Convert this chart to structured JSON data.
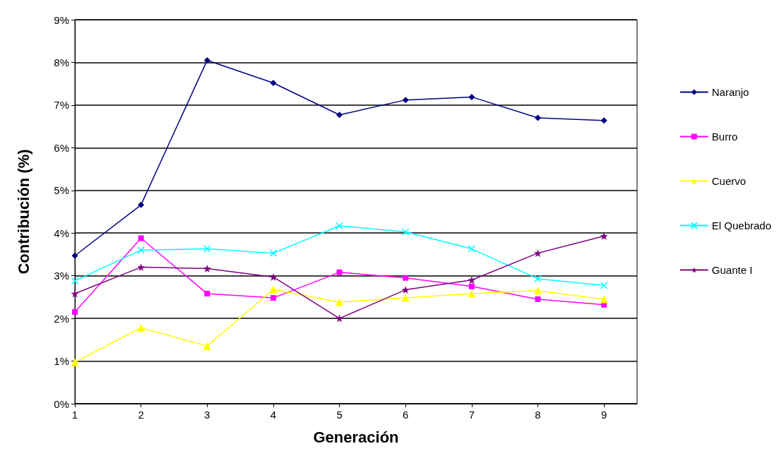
{
  "chart_data": {
    "type": "line",
    "xlabel": "Generación",
    "ylabel": "Contribución (%)",
    "x": [
      1,
      2,
      3,
      4,
      5,
      6,
      7,
      8,
      9
    ],
    "xlim": [
      1,
      9.5
    ],
    "xticks": [
      1,
      2,
      3,
      4,
      5,
      6,
      7,
      8,
      9
    ],
    "ylim": [
      0,
      9
    ],
    "yticks": [
      {
        "value": 0,
        "label": "0%"
      },
      {
        "value": 1,
        "label": "1%"
      },
      {
        "value": 2,
        "label": "2%"
      },
      {
        "value": 3,
        "label": "3%"
      },
      {
        "value": 4,
        "label": "4%"
      },
      {
        "value": 5,
        "label": "5%"
      },
      {
        "value": 6,
        "label": "6%"
      },
      {
        "value": 7,
        "label": "7%"
      },
      {
        "value": 8,
        "label": "8%"
      },
      {
        "value": 9,
        "label": "9%"
      }
    ],
    "grid": "y",
    "legend": "right",
    "series": [
      {
        "name": "Naranjo",
        "color": "#000080",
        "marker": "diamond",
        "values": [
          3.47,
          4.66,
          8.05,
          7.52,
          6.77,
          7.12,
          7.19,
          6.7,
          6.64
        ]
      },
      {
        "name": "Burro",
        "color": "#ff00ff",
        "marker": "square",
        "values": [
          2.15,
          3.88,
          2.58,
          2.48,
          3.08,
          2.95,
          2.75,
          2.45,
          2.32
        ]
      },
      {
        "name": "Cuervo",
        "color": "#ffff00",
        "marker": "triangle",
        "values": [
          0.97,
          1.78,
          1.35,
          2.68,
          2.38,
          2.48,
          2.58,
          2.65,
          2.45
        ]
      },
      {
        "name": "El Quebrado",
        "color": "#00ffff",
        "marker": "cross",
        "values": [
          2.88,
          3.6,
          3.63,
          3.53,
          4.17,
          4.03,
          3.63,
          2.93,
          2.77
        ]
      },
      {
        "name": "Guante I",
        "color": "#800080",
        "marker": "star",
        "values": [
          2.58,
          3.2,
          3.17,
          2.97,
          2.0,
          2.67,
          2.9,
          3.53,
          3.93
        ]
      }
    ]
  }
}
